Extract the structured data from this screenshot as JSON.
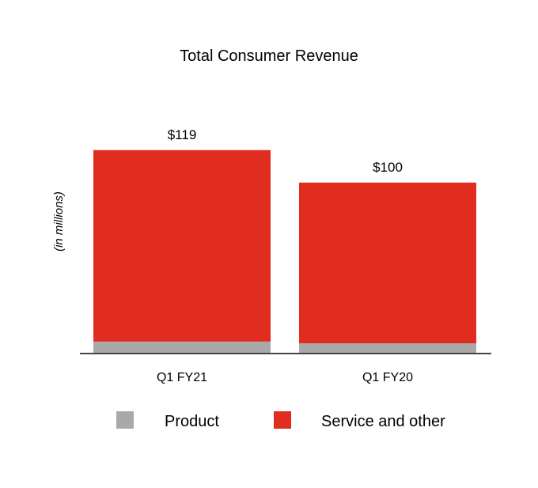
{
  "chart_data": {
    "type": "bar",
    "stacked": true,
    "title": "Total Consumer Revenue",
    "xlabel": "",
    "ylabel": "(in millions)",
    "categories": [
      "Q1 FY21",
      "Q1 FY20"
    ],
    "totals": [
      119,
      100
    ],
    "total_labels": [
      "$119",
      "$100"
    ],
    "series": [
      {
        "name": "Product",
        "color": "#a9a9a9",
        "values": [
          7,
          6
        ]
      },
      {
        "name": "Service and other",
        "color": "#e02d20",
        "values": [
          112,
          94
        ]
      }
    ],
    "ylim": [
      0,
      130
    ],
    "grid": false,
    "legend_position": "bottom"
  }
}
